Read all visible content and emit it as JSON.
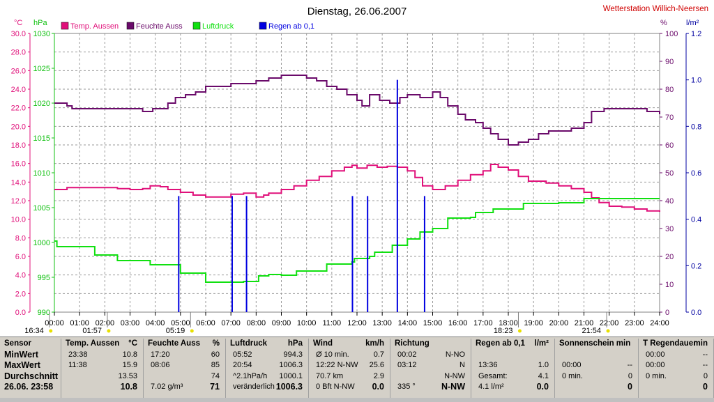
{
  "title": "Dienstag, 26.06.2007",
  "station": "Wetterstation Willich-Neersen",
  "unit_labels": {
    "left_outer": "°C",
    "left_inner": "hPa",
    "right_inner": "%",
    "right_outer": "l/m²"
  },
  "legend": [
    {
      "label": "Temp. Aussen",
      "color": "#e0107a"
    },
    {
      "label": "Feuchte Auss",
      "color": "#6a0a6a"
    },
    {
      "label": "Luftdruck",
      "color": "#10e010"
    },
    {
      "label": "Regen ab 0,1",
      "color": "#0000e0"
    }
  ],
  "markers": [
    {
      "label": "16:34",
      "hour": -0.2
    },
    {
      "label": "01:57",
      "hour": 2.1
    },
    {
      "label": "05:19",
      "hour": 5.4
    },
    {
      "label": "18:23",
      "hour": 18.4
    },
    {
      "label": "21:54",
      "hour": 21.9
    }
  ],
  "chart_data": {
    "type": "line",
    "title": "Dienstag, 26.06.2007",
    "x_ticks": [
      "00:00",
      "01:00",
      "02:00",
      "03:00",
      "04:00",
      "05:00",
      "06:00",
      "07:00",
      "08:00",
      "09:00",
      "10:00",
      "11:00",
      "12:00",
      "13:00",
      "14:00",
      "15:00",
      "16:00",
      "17:00",
      "18:00",
      "19:00",
      "20:00",
      "21:00",
      "22:00",
      "23:00",
      "24:00"
    ],
    "xlim": [
      0,
      24
    ],
    "axes": {
      "temp": {
        "label": "°C",
        "ylim": [
          0,
          30
        ],
        "ticks": [
          "0.0",
          "2.0",
          "4.0",
          "6.0",
          "8.0",
          "10.0",
          "12.0",
          "14.0",
          "16.0",
          "18.0",
          "20.0",
          "22.0",
          "24.0",
          "26.0",
          "28.0",
          "30.0"
        ],
        "color": "#e0107a"
      },
      "pressure": {
        "label": "hPa",
        "ylim": [
          990,
          1030
        ],
        "ticks": [
          "990",
          "995",
          "1000",
          "1005",
          "1010",
          "1015",
          "1020",
          "1025",
          "1030"
        ],
        "color": "#10c010"
      },
      "humidity": {
        "label": "%",
        "ylim": [
          0,
          100
        ],
        "ticks": [
          "0",
          "10",
          "20",
          "30",
          "40",
          "50",
          "60",
          "70",
          "80",
          "90",
          "100"
        ],
        "color": "#6a0a6a"
      },
      "rain": {
        "label": "l/m²",
        "ylim": [
          0,
          1.2
        ],
        "ticks": [
          "0.0",
          "0.2",
          "0.4",
          "0.6",
          "0.8",
          "1.0",
          "1.2"
        ],
        "color": "#0000a0"
      }
    },
    "series": [
      {
        "name": "Temp. Aussen",
        "axis": "temp",
        "color": "#e0107a",
        "points": [
          [
            0,
            13.2
          ],
          [
            0.5,
            13.4
          ],
          [
            1,
            13.4
          ],
          [
            2,
            13.4
          ],
          [
            2.5,
            13.3
          ],
          [
            3,
            13.2
          ],
          [
            3.5,
            13.3
          ],
          [
            3.8,
            13.6
          ],
          [
            4.2,
            13.5
          ],
          [
            4.5,
            13.2
          ],
          [
            5,
            12.9
          ],
          [
            5.5,
            12.6
          ],
          [
            6,
            12.4
          ],
          [
            6.5,
            12.4
          ],
          [
            7,
            12.7
          ],
          [
            7.5,
            12.8
          ],
          [
            8,
            12.4
          ],
          [
            8.3,
            12.6
          ],
          [
            8.5,
            12.8
          ],
          [
            9,
            13.2
          ],
          [
            9.5,
            13.6
          ],
          [
            10,
            14.2
          ],
          [
            10.5,
            14.6
          ],
          [
            11,
            15.2
          ],
          [
            11.5,
            15.6
          ],
          [
            11.8,
            15.8
          ],
          [
            12,
            15.5
          ],
          [
            12.4,
            15.8
          ],
          [
            12.8,
            15.6
          ],
          [
            13.2,
            15.7
          ],
          [
            13.6,
            15.6
          ],
          [
            14,
            15.2
          ],
          [
            14.3,
            14.5
          ],
          [
            14.6,
            13.6
          ],
          [
            15,
            13.2
          ],
          [
            15.5,
            13.6
          ],
          [
            16,
            14.2
          ],
          [
            16.5,
            14.8
          ],
          [
            17,
            15.2
          ],
          [
            17.3,
            15.9
          ],
          [
            17.6,
            15.6
          ],
          [
            18,
            15.3
          ],
          [
            18.4,
            14.6
          ],
          [
            18.8,
            14.1
          ],
          [
            19.5,
            13.9
          ],
          [
            20,
            13.6
          ],
          [
            20.5,
            13.3
          ],
          [
            21,
            12.9
          ],
          [
            21.3,
            12.3
          ],
          [
            21.6,
            11.8
          ],
          [
            22,
            11.4
          ],
          [
            22.5,
            11.3
          ],
          [
            23,
            11.1
          ],
          [
            23.5,
            10.9
          ],
          [
            24,
            10.8
          ]
        ]
      },
      {
        "name": "Feuchte Auss",
        "axis": "humidity",
        "color": "#6a0a6a",
        "points": [
          [
            0,
            75
          ],
          [
            0.5,
            74
          ],
          [
            0.7,
            73
          ],
          [
            1,
            73
          ],
          [
            2,
            73
          ],
          [
            3,
            73
          ],
          [
            3.5,
            72
          ],
          [
            3.9,
            73
          ],
          [
            4.2,
            73
          ],
          [
            4.5,
            75
          ],
          [
            4.8,
            77
          ],
          [
            5.2,
            78
          ],
          [
            5.6,
            79
          ],
          [
            6,
            81
          ],
          [
            6.5,
            81
          ],
          [
            7,
            82
          ],
          [
            7.5,
            82
          ],
          [
            8,
            83
          ],
          [
            8.5,
            84
          ],
          [
            9,
            85
          ],
          [
            9.6,
            85
          ],
          [
            10,
            84
          ],
          [
            10.4,
            83
          ],
          [
            10.8,
            81
          ],
          [
            11.2,
            80
          ],
          [
            11.6,
            78
          ],
          [
            12,
            76
          ],
          [
            12.2,
            74
          ],
          [
            12.5,
            78
          ],
          [
            12.9,
            76
          ],
          [
            13.3,
            75
          ],
          [
            13.7,
            77
          ],
          [
            14,
            78
          ],
          [
            14.5,
            77
          ],
          [
            15,
            79
          ],
          [
            15.3,
            77
          ],
          [
            15.6,
            74
          ],
          [
            16,
            71
          ],
          [
            16.3,
            69
          ],
          [
            16.7,
            68
          ],
          [
            17,
            66
          ],
          [
            17.3,
            64
          ],
          [
            17.6,
            62
          ],
          [
            18,
            60
          ],
          [
            18.4,
            61
          ],
          [
            18.8,
            62
          ],
          [
            19.2,
            64
          ],
          [
            19.6,
            65
          ],
          [
            20,
            65
          ],
          [
            20.5,
            66
          ],
          [
            21,
            68
          ],
          [
            21.3,
            72
          ],
          [
            21.8,
            73
          ],
          [
            22.5,
            73
          ],
          [
            23,
            73
          ],
          [
            23.5,
            72
          ],
          [
            24,
            71
          ]
        ]
      },
      {
        "name": "Luftdruck",
        "axis": "pressure",
        "color": "#10e010",
        "points": [
          [
            0,
            1000.2
          ],
          [
            0.1,
            999.4
          ],
          [
            1,
            999.4
          ],
          [
            1.5,
            999.4
          ],
          [
            1.6,
            998.2
          ],
          [
            2,
            998.2
          ],
          [
            2.4,
            998.2
          ],
          [
            2.5,
            997.4
          ],
          [
            3,
            997.4
          ],
          [
            3.7,
            997.4
          ],
          [
            3.8,
            996.8
          ],
          [
            4.5,
            996.8
          ],
          [
            4.9,
            996.8
          ],
          [
            5,
            995.6
          ],
          [
            5.5,
            995.6
          ],
          [
            5.9,
            995.6
          ],
          [
            6,
            994.3
          ],
          [
            7,
            994.3
          ],
          [
            7.5,
            994.4
          ],
          [
            7.9,
            994.4
          ],
          [
            8.1,
            995.2
          ],
          [
            8.5,
            995.4
          ],
          [
            9,
            995.3
          ],
          [
            9.6,
            995.9
          ],
          [
            10,
            995.9
          ],
          [
            10.7,
            995.9
          ],
          [
            10.8,
            996.9
          ],
          [
            11.5,
            996.9
          ],
          [
            11.8,
            997.2
          ],
          [
            11.9,
            997.7
          ],
          [
            12.5,
            998.0
          ],
          [
            12.7,
            998.6
          ],
          [
            13.2,
            998.6
          ],
          [
            13.4,
            999.6
          ],
          [
            13.9,
            999.6
          ],
          [
            14.0,
            1000.5
          ],
          [
            14.4,
            1000.5
          ],
          [
            14.5,
            1001.5
          ],
          [
            15,
            1002.0
          ],
          [
            15.5,
            1002.0
          ],
          [
            15.6,
            1003.5
          ],
          [
            16,
            1003.5
          ],
          [
            16.5,
            1003.6
          ],
          [
            16.7,
            1004.3
          ],
          [
            17.2,
            1004.3
          ],
          [
            17.4,
            1004.8
          ],
          [
            18.5,
            1004.8
          ],
          [
            18.6,
            1005.6
          ],
          [
            19,
            1005.6
          ],
          [
            20,
            1005.7
          ],
          [
            20.9,
            1005.7
          ],
          [
            21,
            1006.3
          ],
          [
            22,
            1006.3
          ],
          [
            23,
            1006.3
          ],
          [
            24,
            1006.3
          ]
        ]
      },
      {
        "name": "Regen ab 0,1",
        "axis": "rain",
        "color": "#0000e0",
        "style": "bars",
        "points": [
          [
            4.93,
            0.5
          ],
          [
            7.05,
            0.5
          ],
          [
            7.62,
            0.5
          ],
          [
            11.82,
            0.5
          ],
          [
            12.42,
            0.5
          ],
          [
            13.6,
            1.0
          ],
          [
            14.68,
            0.5
          ]
        ]
      }
    ]
  },
  "table": {
    "columns": [
      {
        "header": "Sensor",
        "header_unit": "",
        "rows": [
          [
            "MinWert",
            ""
          ],
          [
            "MaxWert",
            ""
          ],
          [
            "Durchschnitt",
            ""
          ],
          [
            "26.06. 23:58",
            ""
          ]
        ]
      },
      {
        "header": "Temp. Aussen",
        "header_unit": "°C",
        "rows": [
          [
            "23:38",
            "10.8"
          ],
          [
            "11:38",
            "15.9"
          ],
          [
            "",
            "13.53"
          ],
          [
            "",
            "10.8"
          ]
        ]
      },
      {
        "header": "Feuchte Auss",
        "header_unit": "%",
        "rows": [
          [
            "17:20",
            "60"
          ],
          [
            "08:06",
            "85"
          ],
          [
            "",
            "74"
          ],
          [
            "7.02 g/m³",
            "71"
          ]
        ]
      },
      {
        "header": "Luftdruck",
        "header_unit": "hPa",
        "rows": [
          [
            "05:52",
            "994.3"
          ],
          [
            "20:54",
            "1006.3"
          ],
          [
            "^2.1hPa/h",
            "1000.1"
          ],
          [
            "veränderlich",
            "1006.3"
          ]
        ]
      },
      {
        "header": "Wind",
        "header_unit": "km/h",
        "rows": [
          [
            "Ø 10 min.",
            "0.7"
          ],
          [
            "12:22  N-NW",
            "25.6"
          ],
          [
            "70.7 km",
            "2.9"
          ],
          [
            "0 Bft N-NW",
            "0.0"
          ]
        ]
      },
      {
        "header": "Richtung",
        "header_unit": "",
        "rows": [
          [
            "00:02",
            "N-NO"
          ],
          [
            "03:12",
            "N"
          ],
          [
            "",
            "N-NW"
          ],
          [
            "335 °",
            "N-NW"
          ]
        ]
      },
      {
        "header": "Regen ab 0,1",
        "header_unit": "l/m²",
        "rows": [
          [
            "",
            ""
          ],
          [
            "13:36",
            "1.0"
          ],
          [
            "Gesamt:",
            "4.1"
          ],
          [
            "4.1 l/m²",
            "0.0"
          ]
        ]
      },
      {
        "header": "Sonnenschein min",
        "header_unit": "",
        "rows": [
          [
            "",
            ""
          ],
          [
            "00:00",
            "--"
          ],
          [
            "0 min.",
            "0"
          ],
          [
            "",
            "0"
          ]
        ]
      },
      {
        "header": "T Regendauer",
        "header_unit": "min",
        "rows": [
          [
            "00:00",
            "--"
          ],
          [
            "00:00",
            "--"
          ],
          [
            "0 min.",
            "0"
          ],
          [
            "",
            "0"
          ]
        ]
      }
    ]
  }
}
